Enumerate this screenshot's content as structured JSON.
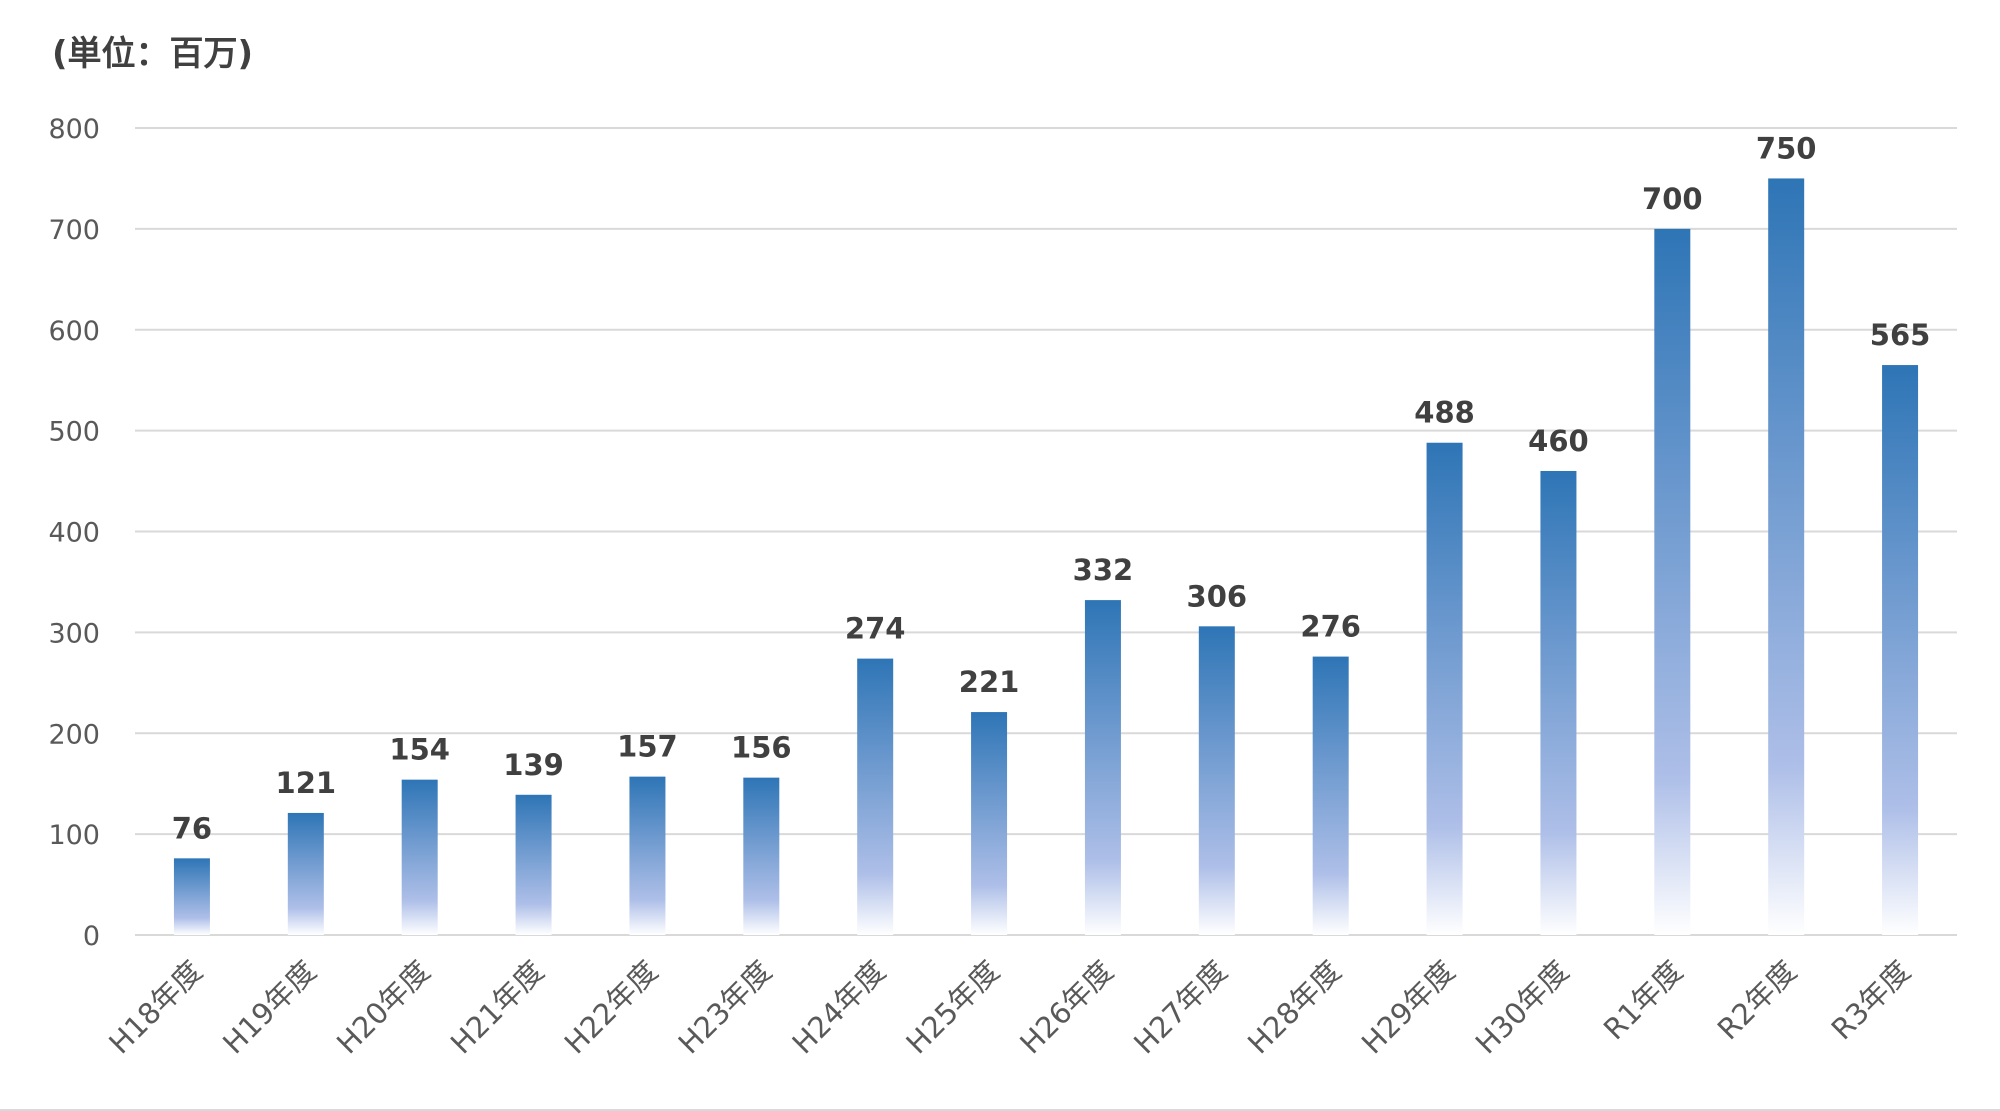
{
  "chart_data": {
    "type": "bar",
    "unit_label": "(単位：百万)",
    "categories": [
      "H18年度",
      "H19年度",
      "H20年度",
      "H21年度",
      "H22年度",
      "H23年度",
      "H24年度",
      "H25年度",
      "H26年度",
      "H27年度",
      "H28年度",
      "H29年度",
      "H30年度",
      "R1年度",
      "R2年度",
      "R3年度"
    ],
    "values": [
      76,
      121,
      154,
      139,
      157,
      156,
      274,
      221,
      332,
      306,
      276,
      488,
      460,
      700,
      750,
      565
    ],
    "ylim": [
      0,
      800
    ],
    "yticks": [
      0,
      100,
      200,
      300,
      400,
      500,
      600,
      700,
      800
    ],
    "grid": true,
    "data_labels": true,
    "colors": {
      "bar_top": "#2e75b6",
      "bar_mid": "#aebfe8",
      "bar_bottom": "#ffffff",
      "grid": "#d9d9d9",
      "text": "#595959",
      "label": "#404040"
    }
  }
}
